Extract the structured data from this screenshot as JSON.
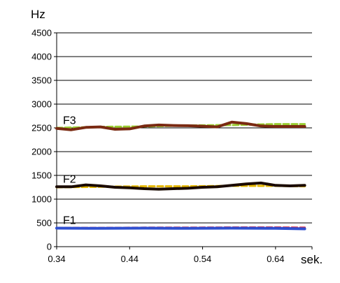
{
  "chart_data": {
    "type": "line",
    "title": "",
    "ylabel": "Hz",
    "xlabel": "sek.",
    "xlim": [
      0.34,
      0.69
    ],
    "ylim": [
      0,
      4500
    ],
    "x_ticks": [
      "0.34",
      "0.44",
      "0.54",
      "0.64"
    ],
    "y_ticks": [
      "0",
      "500",
      "1000",
      "1500",
      "2000",
      "2500",
      "3000",
      "3500",
      "4000",
      "4500"
    ],
    "grid": "horizontal",
    "series_labels": [
      "F3",
      "F2",
      "F1"
    ],
    "series": [
      {
        "name": "F3",
        "color": "#7a2a12",
        "x": [
          0.34,
          0.36,
          0.38,
          0.4,
          0.42,
          0.44,
          0.46,
          0.48,
          0.5,
          0.52,
          0.54,
          0.56,
          0.58,
          0.6,
          0.62,
          0.64,
          0.66,
          0.68
        ],
        "values": [
          2490,
          2460,
          2510,
          2520,
          2470,
          2480,
          2540,
          2560,
          2550,
          2545,
          2535,
          2520,
          2620,
          2590,
          2540,
          2530,
          2530,
          2530
        ]
      },
      {
        "name": "F3 (overlay)",
        "color": "#9acd32",
        "x": [
          0.34,
          0.4,
          0.46,
          0.52,
          0.58,
          0.64,
          0.68
        ],
        "values": [
          2500,
          2520,
          2530,
          2550,
          2560,
          2580,
          2580
        ]
      },
      {
        "name": "F2",
        "color": "#1a0a00",
        "x": [
          0.34,
          0.36,
          0.38,
          0.4,
          0.42,
          0.44,
          0.46,
          0.48,
          0.5,
          0.52,
          0.54,
          0.56,
          0.58,
          0.6,
          0.62,
          0.64,
          0.66,
          0.68
        ],
        "values": [
          1260,
          1260,
          1300,
          1280,
          1250,
          1240,
          1220,
          1210,
          1220,
          1230,
          1250,
          1260,
          1290,
          1320,
          1340,
          1290,
          1280,
          1290
        ]
      },
      {
        "name": "F2 (overlay)",
        "color": "#e6b800",
        "x": [
          0.34,
          0.4,
          0.46,
          0.52,
          0.58,
          0.64,
          0.68
        ],
        "values": [
          1250,
          1260,
          1270,
          1270,
          1280,
          1280,
          1270
        ]
      },
      {
        "name": "F1",
        "color": "#3050d0",
        "x": [
          0.34,
          0.4,
          0.46,
          0.52,
          0.58,
          0.64,
          0.68
        ],
        "values": [
          390,
          385,
          390,
          385,
          390,
          385,
          375
        ]
      },
      {
        "name": "F1 (overlay)",
        "color": "#d03050",
        "x": [
          0.34,
          0.4,
          0.46,
          0.52,
          0.58,
          0.64,
          0.68
        ],
        "values": [
          395,
          395,
          400,
          400,
          405,
          405,
          400
        ]
      }
    ]
  }
}
